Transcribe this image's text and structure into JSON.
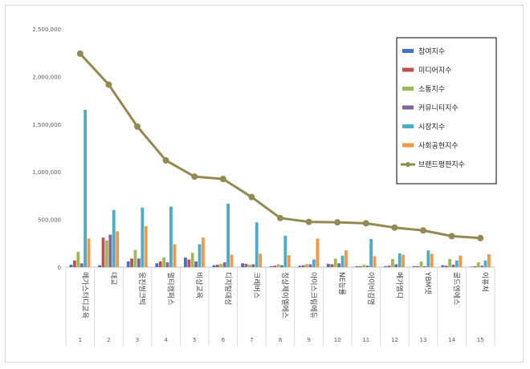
{
  "chart_data": {
    "type": "bar",
    "title": "",
    "xlabel": "",
    "ylabel": "",
    "ylim": [
      0,
      2500000
    ],
    "y_ticks": [
      0,
      500000,
      1000000,
      1500000,
      2000000,
      2500000
    ],
    "y_tick_labels": [
      "0",
      "500,000",
      "1,000,000",
      "1,500,000",
      "2,000,000",
      "2,500,000"
    ],
    "grid": false,
    "legend_position": "right",
    "ranks": [
      "1",
      "2",
      "3",
      "4",
      "5",
      "6",
      "7",
      "8",
      "9",
      "10",
      "11",
      "12",
      "13",
      "14",
      "15"
    ],
    "categories": [
      "메가스터디교육",
      "대교",
      "웅진씽크빅",
      "멀티캠퍼스",
      "비상교육",
      "디지털대성",
      "크레버스",
      "정상제이엘에스",
      "아이스크림에듀",
      "NE능률",
      "아이비김영",
      "메가엠디",
      "YBM넷",
      "골드엔에스",
      "이퓨쳐"
    ],
    "series": [
      {
        "name": "참여지수",
        "color": "#4472c4",
        "values": [
          25000,
          20000,
          60000,
          40000,
          100000,
          20000,
          40000,
          10000,
          15000,
          35000,
          10000,
          10000,
          10000,
          20000,
          5000
        ]
      },
      {
        "name": "미디어지수",
        "color": "#c0504d",
        "values": [
          70000,
          310000,
          90000,
          60000,
          80000,
          25000,
          35000,
          15000,
          20000,
          30000,
          10000,
          15000,
          10000,
          15000,
          10000
        ]
      },
      {
        "name": "소통지수",
        "color": "#9bbb59",
        "values": [
          160000,
          280000,
          180000,
          100000,
          150000,
          35000,
          25000,
          30000,
          30000,
          90000,
          25000,
          85000,
          60000,
          85000,
          50000
        ]
      },
      {
        "name": "커뮤니티지수",
        "color": "#8064a2",
        "values": [
          40000,
          340000,
          90000,
          50000,
          60000,
          50000,
          30000,
          20000,
          30000,
          40000,
          15000,
          30000,
          10000,
          25000,
          15000
        ]
      },
      {
        "name": "시장지수",
        "color": "#4bacc6",
        "values": [
          1650000,
          600000,
          625000,
          635000,
          240000,
          665000,
          470000,
          330000,
          80000,
          120000,
          295000,
          145000,
          175000,
          70000,
          70000
        ]
      },
      {
        "name": "사회공헌지수",
        "color": "#f79646",
        "values": [
          300000,
          375000,
          430000,
          240000,
          310000,
          130000,
          140000,
          125000,
          300000,
          175000,
          115000,
          130000,
          140000,
          120000,
          135000
        ]
      }
    ],
    "line_series": {
      "name": "브랜드평판지수",
      "color": "#938953",
      "values": [
        2240000,
        1915000,
        1475000,
        1120000,
        950000,
        925000,
        735000,
        515000,
        475000,
        470000,
        460000,
        415000,
        385000,
        325000,
        305000
      ]
    }
  }
}
